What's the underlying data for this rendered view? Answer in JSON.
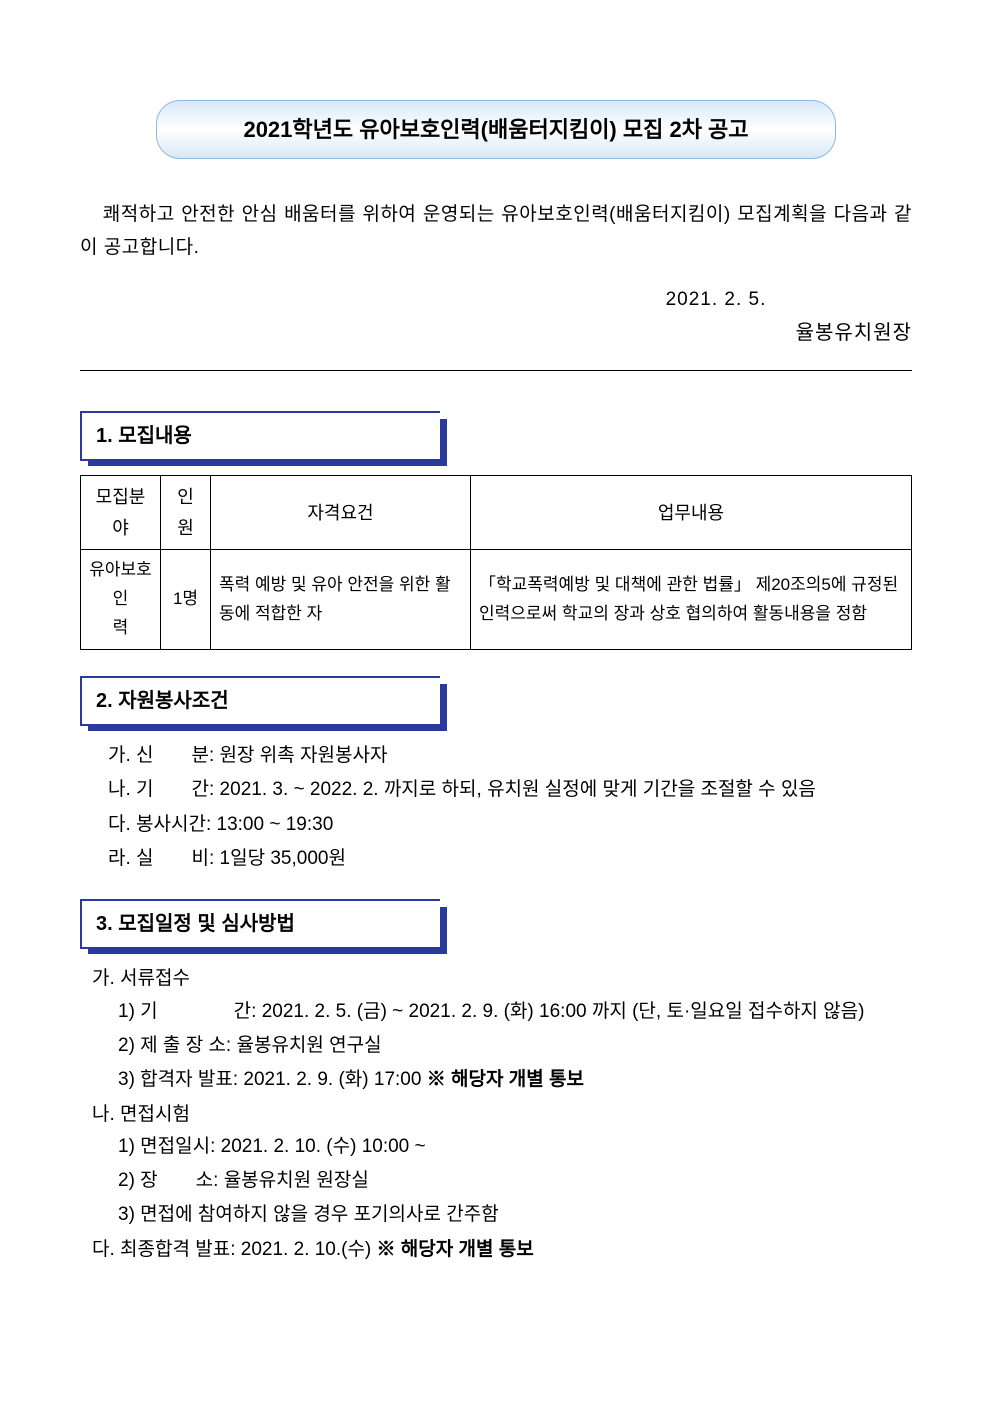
{
  "title": "2021학년도 유아보호인력(배움터지킴이) 모집 2차 공고",
  "intro": "쾌적하고 안전한 안심 배움터를 위하여 운영되는 유아보호인력(배움터지킴이) 모집계획을 다음과 같이 공고합니다.",
  "date": "2021. 2. 5.",
  "signature": "율봉유치원장",
  "sections": {
    "s1": {
      "heading": "1. 모집내용"
    },
    "s2": {
      "heading": "2. 자원봉사조건"
    },
    "s3": {
      "heading": "3. 모집일정 및 심사방법"
    }
  },
  "table": {
    "headers": {
      "field": "모집분야",
      "count": "인원",
      "qual": "자격요건",
      "duty": "업무내용"
    },
    "row": {
      "field_line1": "유아보호",
      "field_line2": "인　　력",
      "count": "1명",
      "qual": "폭력 예방 및 유아 안전을 위한 활동에 적합한 자",
      "duty": "「학교폭력예방 및 대책에 관한 법률」 제20조의5에 규정된 인력으로써 학교의 장과 상호 협의하여 활동내용을 정함"
    }
  },
  "conditions": {
    "a": "가. 신　　분: 원장 위촉 자원봉사자",
    "b": "나. 기　　간: 2021. 3. ~ 2022. 2. 까지로 하되, 유치원 실정에 맞게 기간을 조절할 수 있음",
    "c": "다. 봉사시간: 13:00 ~ 19:30",
    "d": "라. 실　　비: 1일당 35,000원"
  },
  "schedule": {
    "a_heading": "가. 서류접수",
    "a1": "1) 기　　　　간: 2021. 2. 5. (금) ~ 2021. 2. 9. (화) 16:00 까지 (단, 토·일요일 접수하지 않음)",
    "a2": "2) 제 출 장 소: 율봉유치원 연구실",
    "a3_prefix": "3) 합격자 발표: 2021. 2. 9. (화) 17:00 ",
    "a3_bold": "※ 해당자 개별 통보",
    "b_heading": "나. 면접시험",
    "b1": "1) 면접일시: 2021. 2. 10. (수) 10:00 ~",
    "b2": "2) 장　　소: 율봉유치원 원장실",
    "b3": "3) 면접에 참여하지 않을 경우 포기의사로 간주함",
    "c_prefix": "다. 최종합격 발표: 2021. 2. 10.(수) ",
    "c_bold": "※ 해당자 개별 통보"
  },
  "colors": {
    "banner_border": "#8db8e0",
    "section_border": "#2a3a9a",
    "text": "#000000",
    "background": "#ffffff"
  }
}
